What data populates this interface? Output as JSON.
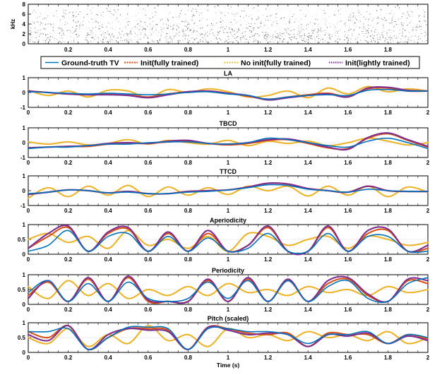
{
  "chart_data": [
    {
      "type": "heatmap",
      "ylabel": "kHz",
      "ylim": [
        0,
        8
      ],
      "xlim": [
        0,
        2
      ],
      "yticks": [
        "0",
        "2",
        "4",
        "6",
        "8"
      ],
      "xticks": [
        "0.2",
        "0.4",
        "0.6",
        "0.8",
        "1",
        "1.2",
        "1.4",
        "1.6",
        "1.8"
      ]
    },
    {
      "legend": [
        "Ground-truth TV",
        "Init(fully trained)",
        "No init(fully trained)",
        "Init(lightly trained)"
      ],
      "legend_colors": [
        "#0072BD",
        "#D95319",
        "#EDB120",
        "#7E2F8E"
      ]
    },
    {
      "type": "line",
      "title": "LA",
      "ylim": [
        -1,
        1
      ],
      "yticks": [
        "-1",
        "0",
        "1"
      ],
      "xticks": [
        "0",
        "0.2",
        "0.4",
        "0.6",
        "0.8",
        "1",
        "1.2",
        "1.4",
        "1.6",
        "1.8",
        "2"
      ],
      "x": [
        0,
        0.1,
        0.2,
        0.3,
        0.4,
        0.5,
        0.6,
        0.7,
        0.8,
        0.9,
        1.0,
        1.1,
        1.2,
        1.3,
        1.4,
        1.5,
        1.6,
        1.7,
        1.8,
        1.9,
        2.0
      ],
      "series": [
        {
          "name": "Ground-truth TV",
          "values": [
            0.05,
            0,
            -0.05,
            -0.1,
            -0.05,
            -0.1,
            -0.15,
            -0.1,
            0,
            0.05,
            -0.1,
            -0.2,
            -0.45,
            -0.3,
            -0.2,
            -0.15,
            -0.2,
            0.15,
            0.2,
            0.1,
            0.1
          ]
        },
        {
          "name": "Init(fully trained)",
          "values": [
            0.1,
            0,
            -0.1,
            -0.15,
            -0.1,
            -0.15,
            -0.3,
            -0.1,
            0.05,
            0.1,
            -0.05,
            -0.25,
            -0.45,
            -0.3,
            -0.15,
            -0.05,
            -0.25,
            0.25,
            0.3,
            0.1,
            0.1
          ]
        },
        {
          "name": "No init(fully trained)",
          "values": [
            0.15,
            -0.2,
            0.1,
            -0.3,
            0.15,
            0.1,
            -0.35,
            0.2,
            0,
            0.25,
            0.05,
            -0.3,
            -0.2,
            0.1,
            -0.35,
            0.3,
            -0.1,
            0.4,
            0.05,
            0.25,
            0.1
          ]
        },
        {
          "name": "Init(lightly trained)",
          "values": [
            0.1,
            0,
            -0.1,
            -0.15,
            -0.15,
            -0.2,
            -0.35,
            -0.15,
            0.05,
            0.1,
            -0.05,
            -0.2,
            -0.5,
            -0.35,
            -0.2,
            -0.1,
            -0.3,
            0.3,
            0.35,
            0.15,
            0.1
          ]
        }
      ]
    },
    {
      "type": "line",
      "title": "TBCD",
      "ylim": [
        -1,
        1
      ],
      "yticks": [
        "-1",
        "0",
        "1"
      ],
      "xticks": [
        "0",
        "0.2",
        "0.4",
        "0.6",
        "0.8",
        "1",
        "1.2",
        "1.4",
        "1.6",
        "1.8",
        "2"
      ],
      "x": [
        0,
        0.1,
        0.2,
        0.3,
        0.4,
        0.5,
        0.6,
        0.7,
        0.8,
        0.9,
        1.0,
        1.1,
        1.2,
        1.3,
        1.4,
        1.5,
        1.6,
        1.7,
        1.8,
        1.9,
        2.0
      ],
      "series": [
        {
          "name": "Ground-truth TV",
          "values": [
            -0.4,
            -0.3,
            -0.3,
            -0.2,
            -0.1,
            -0.1,
            0,
            0.05,
            0.05,
            -0.05,
            -0.1,
            0,
            0.3,
            0.2,
            0,
            -0.2,
            -0.3,
            0.1,
            0.3,
            0,
            -0.4
          ]
        },
        {
          "name": "Init(fully trained)",
          "values": [
            -0.35,
            -0.3,
            -0.25,
            -0.25,
            -0.1,
            -0.05,
            -0.05,
            0.05,
            0.1,
            -0.05,
            -0.15,
            -0.05,
            0.15,
            0.2,
            -0.05,
            -0.35,
            -0.4,
            0.3,
            0.6,
            0.15,
            -0.3
          ]
        },
        {
          "name": "No init(fully trained)",
          "values": [
            0.05,
            -0.1,
            0.05,
            -0.15,
            -0.05,
            0.2,
            -0.1,
            0.15,
            0,
            -0.1,
            0.15,
            -0.2,
            0.1,
            -0.05,
            0.1,
            -0.2,
            0,
            0.3,
            0.1,
            -0.15,
            0
          ]
        },
        {
          "name": "Init(lightly trained)",
          "values": [
            -0.35,
            -0.3,
            -0.25,
            -0.2,
            -0.05,
            0,
            -0.05,
            0.1,
            0.15,
            -0.05,
            -0.1,
            0,
            0.2,
            0.25,
            0,
            -0.3,
            -0.45,
            0.35,
            0.65,
            0.2,
            -0.25
          ]
        }
      ]
    },
    {
      "type": "line",
      "title": "TTCD",
      "ylim": [
        -1,
        1
      ],
      "yticks": [
        "-1",
        "0",
        "1"
      ],
      "xticks": [
        "0",
        "0.2",
        "0.4",
        "0.6",
        "0.8",
        "1",
        "1.2",
        "1.4",
        "1.6",
        "1.8",
        "2"
      ],
      "x": [
        0,
        0.1,
        0.2,
        0.3,
        0.4,
        0.5,
        0.6,
        0.7,
        0.8,
        0.9,
        1.0,
        1.1,
        1.2,
        1.3,
        1.4,
        1.5,
        1.6,
        1.7,
        1.8,
        1.9,
        2.0
      ],
      "series": [
        {
          "name": "Ground-truth TV",
          "values": [
            -0.2,
            -0.1,
            0.05,
            0,
            -0.15,
            -0.1,
            -0.2,
            -0.2,
            -0.1,
            -0.05,
            0.05,
            0.2,
            0.4,
            0.35,
            0.1,
            0,
            -0.1,
            0.1,
            0,
            -0.05,
            -0.05
          ]
        },
        {
          "name": "Init(fully trained)",
          "values": [
            -0.25,
            -0.1,
            0.05,
            0,
            -0.15,
            -0.05,
            -0.2,
            -0.2,
            -0.05,
            0,
            0.05,
            0.25,
            0.5,
            0.45,
            0.15,
            0,
            -0.1,
            0.3,
            0,
            -0.05,
            -0.05
          ]
        },
        {
          "name": "No init(fully trained)",
          "values": [
            -0.5,
            0.2,
            -0.4,
            0.3,
            -0.3,
            0.35,
            -0.4,
            0.25,
            -0.3,
            0.2,
            -0.25,
            0.3,
            0,
            0.3,
            -0.35,
            0.3,
            -0.3,
            0.3,
            -0.4,
            0.25,
            -0.1
          ]
        },
        {
          "name": "Init(lightly trained)",
          "values": [
            -0.25,
            -0.1,
            0.05,
            0,
            -0.15,
            -0.05,
            -0.2,
            -0.2,
            -0.05,
            0,
            0.05,
            0.25,
            0.5,
            0.45,
            0.15,
            0,
            -0.1,
            0.3,
            0,
            -0.05,
            -0.05
          ]
        }
      ]
    },
    {
      "type": "line",
      "title": "Aperiodicity",
      "ylim": [
        0,
        1
      ],
      "yticks": [
        "0",
        "0.5",
        "1"
      ],
      "xticks": [
        "0",
        "0.2",
        "0.4",
        "0.6",
        "0.8",
        "1",
        "1.2",
        "1.4",
        "1.6",
        "1.8",
        "2"
      ],
      "x": [
        0,
        0.1,
        0.2,
        0.3,
        0.4,
        0.5,
        0.6,
        0.7,
        0.8,
        0.9,
        1.0,
        1.1,
        1.2,
        1.3,
        1.4,
        1.5,
        1.6,
        1.7,
        1.8,
        1.9,
        2.0
      ],
      "series": [
        {
          "name": "Ground-truth TV",
          "values": [
            0.1,
            0.3,
            0.8,
            0.1,
            0.6,
            0.7,
            0.1,
            0.6,
            0.1,
            0.55,
            0.1,
            0.2,
            0.7,
            0.1,
            0.1,
            0.7,
            0.1,
            0.6,
            0.6,
            0.1,
            0.1
          ]
        },
        {
          "name": "Init(fully trained)",
          "values": [
            0.2,
            0.6,
            0.9,
            0.1,
            0.7,
            0.85,
            0.1,
            0.7,
            0.1,
            0.7,
            0.1,
            0.3,
            0.9,
            0.1,
            0.1,
            0.9,
            0.1,
            0.7,
            0.8,
            0.1,
            0.2
          ]
        },
        {
          "name": "No init(fully trained)",
          "values": [
            0.5,
            0.7,
            0.4,
            0.6,
            0.2,
            0.8,
            0.3,
            0.5,
            0.2,
            0.6,
            0.1,
            0.7,
            0.6,
            0.3,
            0.5,
            0.6,
            0.2,
            0.6,
            0.5,
            0.3,
            0.4
          ]
        },
        {
          "name": "Init(lightly trained)",
          "values": [
            0.2,
            0.7,
            0.95,
            0.1,
            0.75,
            0.9,
            0.1,
            0.75,
            0.1,
            0.8,
            0.1,
            0.3,
            0.95,
            0.1,
            0.1,
            0.95,
            0.1,
            0.8,
            0.85,
            0.1,
            0.3
          ]
        }
      ]
    },
    {
      "type": "line",
      "title": "Periodicity",
      "ylim": [
        0,
        1
      ],
      "yticks": [
        "0",
        "0.5",
        "1"
      ],
      "xticks": [
        "0",
        "0.2",
        "0.4",
        "0.6",
        "0.8",
        "1",
        "1.2",
        "1.4",
        "1.6",
        "1.8",
        "2"
      ],
      "x": [
        0,
        0.1,
        0.2,
        0.3,
        0.4,
        0.5,
        0.6,
        0.7,
        0.8,
        0.9,
        1.0,
        1.1,
        1.2,
        1.3,
        1.4,
        1.5,
        1.6,
        1.7,
        1.8,
        1.9,
        2.0
      ],
      "series": [
        {
          "name": "Ground-truth TV",
          "values": [
            0.4,
            0.8,
            0.1,
            0.7,
            0.1,
            0.75,
            0.2,
            0.1,
            0.2,
            0.75,
            0.2,
            0.8,
            0.1,
            0.8,
            0.1,
            0.6,
            0.8,
            0.2,
            0.1,
            0.7,
            0.9
          ]
        },
        {
          "name": "Init(fully trained)",
          "values": [
            0.3,
            0.75,
            0.1,
            0.85,
            0.1,
            0.9,
            0.1,
            0.1,
            0.1,
            0.8,
            0.1,
            0.85,
            0.1,
            0.8,
            0.1,
            0.7,
            0.85,
            0.3,
            0.1,
            0.8,
            0.7
          ]
        },
        {
          "name": "No init(fully trained)",
          "values": [
            0.6,
            0.2,
            0.8,
            0.3,
            0.7,
            0.2,
            0.5,
            0.3,
            0.6,
            0.3,
            0.7,
            0.4,
            0.5,
            0.3,
            0.6,
            0.4,
            0.5,
            0.3,
            0.6,
            0.4,
            0.5
          ]
        },
        {
          "name": "Init(lightly trained)",
          "values": [
            0.2,
            0.8,
            0.1,
            0.9,
            0.1,
            0.95,
            0.15,
            0.1,
            0.1,
            0.85,
            0.1,
            0.9,
            0.1,
            0.85,
            0.1,
            0.8,
            0.9,
            0.35,
            0.1,
            0.85,
            0.8
          ]
        }
      ]
    },
    {
      "type": "line",
      "title": "Pitch (scaled)",
      "xlabel": "Time (s)",
      "ylim": [
        0,
        1
      ],
      "yticks": [
        "0",
        "0.5",
        "1"
      ],
      "xticks": [
        "0",
        "0.2",
        "0.4",
        "0.6",
        "0.8",
        "1",
        "1.2",
        "1.4",
        "1.6",
        "1.8",
        "2"
      ],
      "x": [
        0,
        0.1,
        0.2,
        0.3,
        0.4,
        0.5,
        0.6,
        0.7,
        0.8,
        0.9,
        1.0,
        1.1,
        1.2,
        1.3,
        1.4,
        1.5,
        1.6,
        1.7,
        1.8,
        1.9,
        2.0
      ],
      "series": [
        {
          "name": "Ground-truth TV",
          "values": [
            0.7,
            0.7,
            0.8,
            0.1,
            0.5,
            0.85,
            0.85,
            0.8,
            0.1,
            0.8,
            0.8,
            0.7,
            0.7,
            0.6,
            0.3,
            0.6,
            0.6,
            0.7,
            0.3,
            0.6,
            0.5
          ]
        },
        {
          "name": "Init(fully trained)",
          "values": [
            0.7,
            0.5,
            0.9,
            0.1,
            0.5,
            0.8,
            0.8,
            0.75,
            0.1,
            0.85,
            0.8,
            0.65,
            0.6,
            0.65,
            0.2,
            0.65,
            0.6,
            0.6,
            0.3,
            0.6,
            0.45
          ]
        },
        {
          "name": "No init(fully trained)",
          "values": [
            0.5,
            0.3,
            0.8,
            0.2,
            0.6,
            0.3,
            0.9,
            0.4,
            0.6,
            0.2,
            0.8,
            0.5,
            0.6,
            0.4,
            0.7,
            0.5,
            0.6,
            0.4,
            0.7,
            0.3,
            0.5
          ]
        },
        {
          "name": "Init(lightly trained)",
          "values": [
            0.6,
            0.4,
            0.9,
            0.1,
            0.6,
            0.8,
            0.75,
            0.7,
            0.1,
            0.85,
            0.75,
            0.6,
            0.65,
            0.6,
            0.2,
            0.6,
            0.55,
            0.65,
            0.3,
            0.55,
            0.4
          ]
        }
      ]
    }
  ]
}
